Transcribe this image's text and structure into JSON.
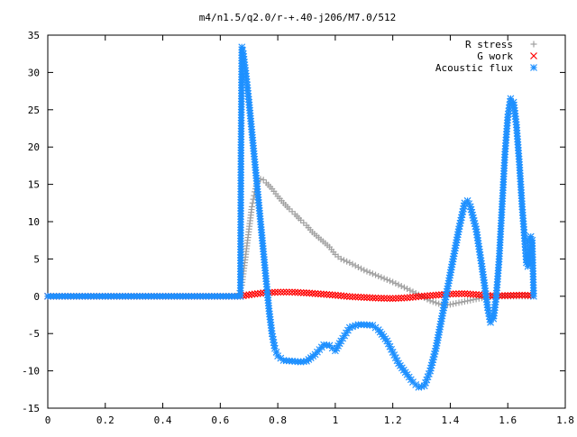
{
  "chart_data": {
    "type": "scatter",
    "title": "m4/n1.5/q2.0/r-+.40-j206/M7.0/512",
    "xlabel": "",
    "ylabel": "",
    "xlim": [
      0,
      1.8
    ],
    "ylim": [
      -15,
      35
    ],
    "x_ticks": [
      0,
      0.2,
      0.4,
      0.6,
      0.8,
      1,
      1.2,
      1.4,
      1.6,
      1.8
    ],
    "x_tick_labels": [
      "0",
      "0.2",
      "0.4",
      "0.6",
      "0.8",
      "1",
      "1.2",
      "1.4",
      "1.6",
      "1.8"
    ],
    "y_ticks": [
      -15,
      -10,
      -5,
      0,
      5,
      10,
      15,
      20,
      25,
      30,
      35
    ],
    "y_tick_labels": [
      "-15",
      "-10",
      "-5",
      "0",
      "5",
      "10",
      "15",
      "20",
      "25",
      "30",
      "35"
    ],
    "grid": false,
    "legend_position": "top-right",
    "series": [
      {
        "name": "R stress",
        "marker": "+",
        "color": "#a0a0a0",
        "points": [
          [
            0.0,
            0.0
          ],
          [
            0.1,
            0.0
          ],
          [
            0.2,
            0.0
          ],
          [
            0.3,
            0.0
          ],
          [
            0.4,
            0.0
          ],
          [
            0.5,
            0.0
          ],
          [
            0.6,
            0.0
          ],
          [
            0.66,
            0.0
          ],
          [
            0.675,
            1.5
          ],
          [
            0.68,
            3.0
          ],
          [
            0.685,
            4.5
          ],
          [
            0.69,
            6.0
          ],
          [
            0.695,
            7.5
          ],
          [
            0.7,
            9.0
          ],
          [
            0.705,
            10.5
          ],
          [
            0.71,
            12.0
          ],
          [
            0.715,
            13.0
          ],
          [
            0.72,
            14.0
          ],
          [
            0.725,
            14.8
          ],
          [
            0.73,
            15.3
          ],
          [
            0.74,
            15.7
          ],
          [
            0.75,
            15.6
          ],
          [
            0.76,
            15.2
          ],
          [
            0.78,
            14.4
          ],
          [
            0.8,
            13.4
          ],
          [
            0.82,
            12.5
          ],
          [
            0.84,
            11.7
          ],
          [
            0.86,
            11.0
          ],
          [
            0.88,
            10.2
          ],
          [
            0.9,
            9.5
          ],
          [
            0.92,
            8.6
          ],
          [
            0.95,
            7.6
          ],
          [
            0.98,
            6.6
          ],
          [
            1.0,
            5.6
          ],
          [
            1.02,
            5.0
          ],
          [
            1.05,
            4.5
          ],
          [
            1.08,
            3.9
          ],
          [
            1.1,
            3.5
          ],
          [
            1.15,
            2.7
          ],
          [
            1.2,
            1.9
          ],
          [
            1.25,
            1.0
          ],
          [
            1.3,
            0.0
          ],
          [
            1.33,
            -0.6
          ],
          [
            1.36,
            -1.0
          ],
          [
            1.38,
            -1.2
          ],
          [
            1.4,
            -1.1
          ],
          [
            1.45,
            -0.7
          ],
          [
            1.5,
            -0.3
          ],
          [
            1.55,
            0.0
          ],
          [
            1.6,
            0.0
          ],
          [
            1.65,
            0.0
          ],
          [
            1.68,
            0.0
          ]
        ]
      },
      {
        "name": "G work",
        "marker": "x",
        "color": "#ff0000",
        "points": [
          [
            0.0,
            0.0
          ],
          [
            0.1,
            0.0
          ],
          [
            0.2,
            0.0
          ],
          [
            0.3,
            0.0
          ],
          [
            0.4,
            0.0
          ],
          [
            0.5,
            0.0
          ],
          [
            0.6,
            0.0
          ],
          [
            0.67,
            0.0
          ],
          [
            0.7,
            0.2
          ],
          [
            0.75,
            0.45
          ],
          [
            0.8,
            0.55
          ],
          [
            0.85,
            0.55
          ],
          [
            0.9,
            0.45
          ],
          [
            0.95,
            0.3
          ],
          [
            1.0,
            0.15
          ],
          [
            1.05,
            -0.05
          ],
          [
            1.1,
            -0.15
          ],
          [
            1.15,
            -0.25
          ],
          [
            1.2,
            -0.3
          ],
          [
            1.25,
            -0.2
          ],
          [
            1.3,
            0.0
          ],
          [
            1.35,
            0.15
          ],
          [
            1.4,
            0.3
          ],
          [
            1.45,
            0.35
          ],
          [
            1.5,
            0.2
          ],
          [
            1.55,
            0.05
          ],
          [
            1.6,
            0.1
          ],
          [
            1.65,
            0.15
          ],
          [
            1.68,
            0.1
          ]
        ]
      },
      {
        "name": "Acoustic flux",
        "marker": "*",
        "color": "#1e90ff",
        "points": [
          [
            0.0,
            0.0
          ],
          [
            0.1,
            0.0
          ],
          [
            0.2,
            0.0
          ],
          [
            0.3,
            0.0
          ],
          [
            0.4,
            0.0
          ],
          [
            0.5,
            0.0
          ],
          [
            0.6,
            0.0
          ],
          [
            0.67,
            0.0
          ],
          [
            0.672,
            19.2
          ],
          [
            0.675,
            33.4
          ],
          [
            0.68,
            32.5
          ],
          [
            0.685,
            31.0
          ],
          [
            0.69,
            29.5
          ],
          [
            0.7,
            26.0
          ],
          [
            0.71,
            22.0
          ],
          [
            0.72,
            18.0
          ],
          [
            0.73,
            14.0
          ],
          [
            0.74,
            10.0
          ],
          [
            0.75,
            6.0
          ],
          [
            0.76,
            2.0
          ],
          [
            0.77,
            -2.0
          ],
          [
            0.78,
            -5.0
          ],
          [
            0.79,
            -7.0
          ],
          [
            0.8,
            -8.0
          ],
          [
            0.82,
            -8.6
          ],
          [
            0.85,
            -8.7
          ],
          [
            0.88,
            -8.8
          ],
          [
            0.9,
            -8.7
          ],
          [
            0.93,
            -7.8
          ],
          [
            0.96,
            -6.5
          ],
          [
            0.98,
            -6.6
          ],
          [
            1.0,
            -7.3
          ],
          [
            1.02,
            -6.0
          ],
          [
            1.05,
            -4.2
          ],
          [
            1.08,
            -3.8
          ],
          [
            1.1,
            -3.8
          ],
          [
            1.13,
            -3.9
          ],
          [
            1.15,
            -4.5
          ],
          [
            1.18,
            -6.0
          ],
          [
            1.2,
            -7.5
          ],
          [
            1.22,
            -9.0
          ],
          [
            1.25,
            -10.5
          ],
          [
            1.27,
            -11.5
          ],
          [
            1.29,
            -12.2
          ],
          [
            1.31,
            -12.0
          ],
          [
            1.33,
            -10.0
          ],
          [
            1.35,
            -7.0
          ],
          [
            1.37,
            -3.0
          ],
          [
            1.39,
            1.0
          ],
          [
            1.41,
            5.0
          ],
          [
            1.43,
            9.0
          ],
          [
            1.45,
            12.5
          ],
          [
            1.46,
            12.8
          ],
          [
            1.47,
            12.0
          ],
          [
            1.49,
            9.0
          ],
          [
            1.51,
            4.0
          ],
          [
            1.53,
            -1.5
          ],
          [
            1.54,
            -3.5
          ],
          [
            1.55,
            -3.0
          ],
          [
            1.56,
            0.0
          ],
          [
            1.57,
            5.0
          ],
          [
            1.58,
            12.0
          ],
          [
            1.59,
            19.0
          ],
          [
            1.6,
            24.0
          ],
          [
            1.61,
            26.5
          ],
          [
            1.62,
            26.0
          ],
          [
            1.63,
            23.0
          ],
          [
            1.64,
            18.0
          ],
          [
            1.65,
            12.0
          ],
          [
            1.66,
            7.0
          ],
          [
            1.665,
            4.5
          ],
          [
            1.67,
            4.0
          ],
          [
            1.675,
            5.5
          ],
          [
            1.68,
            8.0
          ],
          [
            1.685,
            7.5
          ],
          [
            1.69,
            0.0
          ]
        ]
      }
    ]
  }
}
